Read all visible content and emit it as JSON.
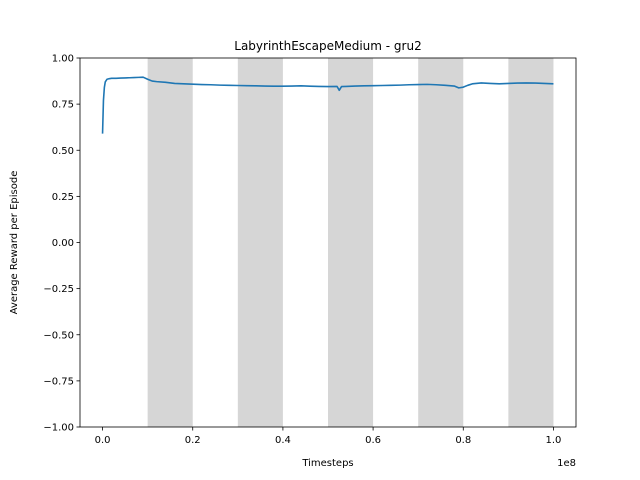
{
  "chart_data": {
    "type": "line",
    "title": "LabyrinthEscapeMedium - gru2",
    "xlabel": "Timesteps",
    "ylabel": "Average Reward per Episode",
    "x_offset_text": "1e8",
    "xlim": [
      -0.05,
      1.05
    ],
    "ylim": [
      -1.0,
      1.0
    ],
    "x_scale_factor": 100000000,
    "x_ticks": [
      0.0,
      0.2,
      0.4,
      0.6,
      0.8,
      1.0
    ],
    "x_tick_labels": [
      "0.0",
      "0.2",
      "0.4",
      "0.6",
      "0.8",
      "1.0"
    ],
    "y_ticks": [
      -1.0,
      -0.75,
      -0.5,
      -0.25,
      0.0,
      0.25,
      0.5,
      0.75,
      1.0
    ],
    "y_tick_labels": [
      "−1.00",
      "−0.75",
      "−0.50",
      "−0.25",
      "0.00",
      "0.25",
      "0.50",
      "0.75",
      "1.00"
    ],
    "shaded_intervals": [
      [
        0.1,
        0.2
      ],
      [
        0.3,
        0.4
      ],
      [
        0.5,
        0.6
      ],
      [
        0.7,
        0.8
      ],
      [
        0.9,
        1.0
      ]
    ],
    "shade_color": "#d6d6d6",
    "grid": false,
    "series": [
      {
        "color": "#1f77b4",
        "x": [
          0.0,
          0.002,
          0.004,
          0.006,
          0.01,
          0.015,
          0.02,
          0.03,
          0.04,
          0.05,
          0.06,
          0.07,
          0.08,
          0.09,
          0.1,
          0.11,
          0.12,
          0.14,
          0.16,
          0.18,
          0.2,
          0.22,
          0.24,
          0.26,
          0.28,
          0.3,
          0.32,
          0.34,
          0.36,
          0.38,
          0.4,
          0.42,
          0.44,
          0.46,
          0.48,
          0.5,
          0.52,
          0.525,
          0.53,
          0.54,
          0.56,
          0.58,
          0.6,
          0.62,
          0.64,
          0.66,
          0.68,
          0.7,
          0.72,
          0.74,
          0.76,
          0.78,
          0.79,
          0.8,
          0.81,
          0.82,
          0.84,
          0.86,
          0.88,
          0.9,
          0.92,
          0.94,
          0.96,
          0.98,
          1.0
        ],
        "y": [
          0.59,
          0.77,
          0.84,
          0.87,
          0.885,
          0.888,
          0.89,
          0.89,
          0.891,
          0.892,
          0.893,
          0.894,
          0.895,
          0.896,
          0.885,
          0.875,
          0.872,
          0.868,
          0.862,
          0.86,
          0.858,
          0.856,
          0.855,
          0.853,
          0.852,
          0.851,
          0.85,
          0.849,
          0.848,
          0.847,
          0.847,
          0.848,
          0.849,
          0.847,
          0.846,
          0.845,
          0.846,
          0.825,
          0.845,
          0.846,
          0.848,
          0.849,
          0.85,
          0.851,
          0.852,
          0.853,
          0.855,
          0.856,
          0.857,
          0.855,
          0.852,
          0.848,
          0.838,
          0.842,
          0.852,
          0.86,
          0.865,
          0.862,
          0.86,
          0.862,
          0.864,
          0.865,
          0.864,
          0.862,
          0.86
        ]
      }
    ]
  }
}
